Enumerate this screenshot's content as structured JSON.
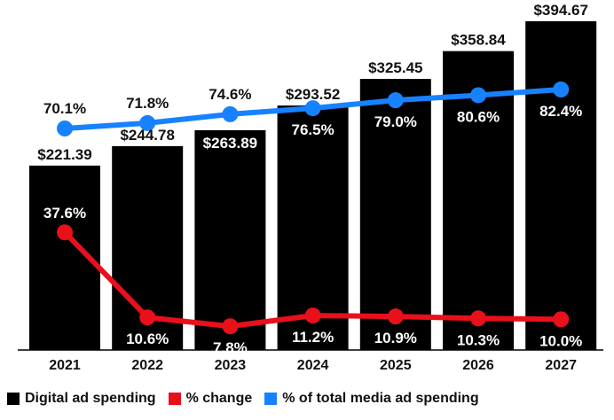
{
  "chart_data": {
    "type": "bar",
    "categories": [
      "2021",
      "2022",
      "2023",
      "2024",
      "2025",
      "2026",
      "2027"
    ],
    "series": [
      {
        "name": "Digital ad spending",
        "type": "bar",
        "values": [
          221.39,
          244.78,
          263.89,
          293.52,
          325.45,
          358.84,
          394.67
        ],
        "labels": [
          "$221.39",
          "$244.78",
          "$263.89",
          "$293.52",
          "$325.45",
          "$358.84",
          "$394.67"
        ],
        "color": "#000000"
      },
      {
        "name": "% change",
        "type": "line",
        "values": [
          37.6,
          10.6,
          7.8,
          11.2,
          10.9,
          10.3,
          10.0
        ],
        "labels": [
          "37.6%",
          "10.6%",
          "7.8%",
          "11.2%",
          "10.9%",
          "10.3%",
          "10.0%"
        ],
        "color": "#e8101a"
      },
      {
        "name": "% of total media ad spending",
        "type": "line",
        "values": [
          70.1,
          71.8,
          74.6,
          76.5,
          79.0,
          80.6,
          82.4
        ],
        "labels": [
          "70.1%",
          "71.8%",
          "74.6%",
          "76.5%",
          "79.0%",
          "80.6%",
          "82.4%"
        ],
        "color": "#1782ff"
      }
    ],
    "grid": false,
    "legend": "bottom"
  },
  "legend": [
    {
      "label": "Digital ad spending",
      "color": "#000000"
    },
    {
      "label": "% change",
      "color": "#e8101a"
    },
    {
      "label": "% of total media ad spending",
      "color": "#1782ff"
    }
  ]
}
